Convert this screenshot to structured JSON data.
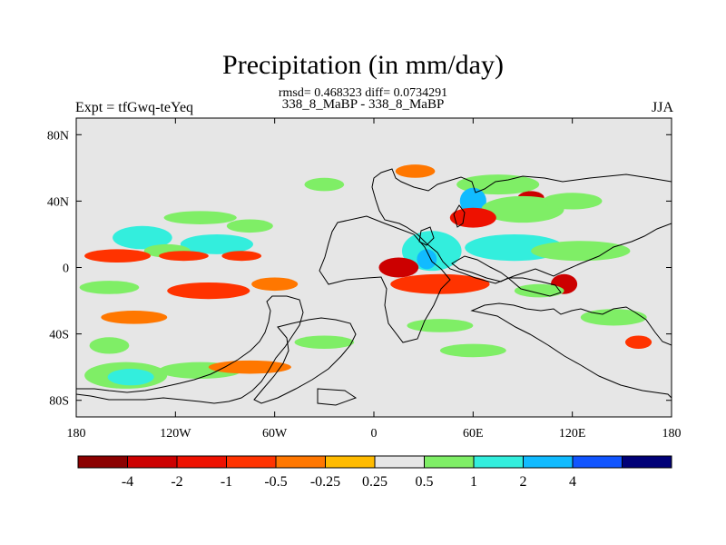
{
  "map": {
    "title": "Precipitation (in mm/day)",
    "stats": "rmsd= 0.468323 diff= 0.0734291",
    "subtitle": "338_8_MaBP - 338_8_MaBP",
    "experiment": "Expt = tfGwq-teYeq",
    "season": "JJA",
    "projection": "cylindrical equidistant",
    "lon_range": [
      -180,
      180
    ],
    "lat_range": [
      -90,
      90
    ],
    "lat_ticks": [
      {
        "value": 80,
        "label": "80N"
      },
      {
        "value": 40,
        "label": "40N"
      },
      {
        "value": 0,
        "label": "0"
      },
      {
        "value": -40,
        "label": "40S"
      },
      {
        "value": -80,
        "label": "80S"
      }
    ],
    "lon_ticks": [
      {
        "value": -180,
        "label": "180"
      },
      {
        "value": -120,
        "label": "120W"
      },
      {
        "value": -60,
        "label": "60W"
      },
      {
        "value": 0,
        "label": "0"
      },
      {
        "value": 60,
        "label": "60E"
      },
      {
        "value": 120,
        "label": "120E"
      },
      {
        "value": 180,
        "label": "180"
      }
    ]
  },
  "colorbar": {
    "colors": [
      "#8b0000",
      "#cc0000",
      "#ee1100",
      "#ff3300",
      "#ff7700",
      "#ffbb00",
      "#e6e6e6",
      "#7fee66",
      "#33eedd",
      "#11bbff",
      "#1155ff",
      "#000077"
    ],
    "labels": [
      "-4",
      "-2",
      "-1",
      "-0.5",
      "-0.25",
      "0.25",
      "0.5",
      "1",
      "2",
      "4"
    ]
  },
  "chart_data": {
    "type": "heatmap",
    "title": "Precipitation (in mm/day)",
    "units": "mm/day",
    "levels": [
      -4,
      -2,
      -1,
      -0.5,
      -0.25,
      0.25,
      0.5,
      1,
      2,
      4
    ],
    "features": [
      {
        "lon": -105,
        "lat": 30,
        "rlon": 22,
        "rlat": 4,
        "value": 0.7
      },
      {
        "lon": -140,
        "lat": 18,
        "rlon": 18,
        "rlat": 7,
        "value": 1.5
      },
      {
        "lon": -95,
        "lat": 14,
        "rlon": 22,
        "rlat": 6,
        "value": 1.5
      },
      {
        "lon": -125,
        "lat": 10,
        "rlon": 14,
        "rlat": 4,
        "value": 0.7
      },
      {
        "lon": -75,
        "lat": 25,
        "rlon": 14,
        "rlat": 4,
        "value": 0.7
      },
      {
        "lon": -155,
        "lat": 7,
        "rlon": 20,
        "rlat": 4,
        "value": -0.6
      },
      {
        "lon": -115,
        "lat": 7,
        "rlon": 15,
        "rlat": 3,
        "value": -0.6
      },
      {
        "lon": -80,
        "lat": 7,
        "rlon": 12,
        "rlat": 3,
        "value": -0.6
      },
      {
        "lon": -160,
        "lat": -12,
        "rlon": 18,
        "rlat": 4,
        "value": 0.7
      },
      {
        "lon": -100,
        "lat": -14,
        "rlon": 25,
        "rlat": 5,
        "value": -0.6
      },
      {
        "lon": -60,
        "lat": -10,
        "rlon": 14,
        "rlat": 4,
        "value": -0.4
      },
      {
        "lon": -145,
        "lat": -30,
        "rlon": 20,
        "rlat": 4,
        "value": -0.4
      },
      {
        "lon": -160,
        "lat": -47,
        "rlon": 12,
        "rlat": 5,
        "value": 0.7
      },
      {
        "lon": -150,
        "lat": -65,
        "rlon": 25,
        "rlat": 8,
        "value": 0.7
      },
      {
        "lon": -147,
        "lat": -66,
        "rlon": 14,
        "rlat": 5,
        "value": 1.5
      },
      {
        "lon": -105,
        "lat": -62,
        "rlon": 25,
        "rlat": 5,
        "value": 0.7
      },
      {
        "lon": -75,
        "lat": -60,
        "rlon": 25,
        "rlat": 4,
        "value": -0.4
      },
      {
        "lon": -30,
        "lat": -45,
        "rlon": 18,
        "rlat": 4,
        "value": 0.7
      },
      {
        "lon": -30,
        "lat": 50,
        "rlon": 12,
        "rlat": 4,
        "value": 0.7
      },
      {
        "lon": 25,
        "lat": 58,
        "rlon": 12,
        "rlat": 4,
        "value": -0.4
      },
      {
        "lon": 75,
        "lat": 50,
        "rlon": 25,
        "rlat": 6,
        "value": 0.7
      },
      {
        "lon": 60,
        "lat": 40,
        "rlon": 8,
        "rlat": 8,
        "value": 2.5
      },
      {
        "lon": 95,
        "lat": 42,
        "rlon": 8,
        "rlat": 4,
        "value": -2.5
      },
      {
        "lon": 90,
        "lat": 35,
        "rlon": 25,
        "rlat": 8,
        "value": 0.7
      },
      {
        "lon": 120,
        "lat": 40,
        "rlon": 18,
        "rlat": 5,
        "value": 0.7
      },
      {
        "lon": 85,
        "lat": 12,
        "rlon": 30,
        "rlat": 8,
        "value": 1.5
      },
      {
        "lon": 125,
        "lat": 10,
        "rlon": 30,
        "rlat": 6,
        "value": 0.7
      },
      {
        "lon": 35,
        "lat": 10,
        "rlon": 18,
        "rlat": 12,
        "value": 1.5
      },
      {
        "lon": 32,
        "lat": 5,
        "rlon": 6,
        "rlat": 6,
        "value": 2.5
      },
      {
        "lon": 15,
        "lat": 0,
        "rlon": 12,
        "rlat": 6,
        "value": -2.5
      },
      {
        "lon": 60,
        "lat": 30,
        "rlon": 14,
        "rlat": 6,
        "value": -1.5
      },
      {
        "lon": 40,
        "lat": -10,
        "rlon": 30,
        "rlat": 6,
        "value": -0.6
      },
      {
        "lon": 115,
        "lat": -10,
        "rlon": 8,
        "rlat": 6,
        "value": -2.5
      },
      {
        "lon": 100,
        "lat": -14,
        "rlon": 15,
        "rlat": 4,
        "value": 0.7
      },
      {
        "lon": 145,
        "lat": -30,
        "rlon": 20,
        "rlat": 5,
        "value": 0.7
      },
      {
        "lon": 160,
        "lat": -45,
        "rlon": 8,
        "rlat": 4,
        "value": -0.6
      },
      {
        "lon": 40,
        "lat": -35,
        "rlon": 20,
        "rlat": 4,
        "value": 0.7
      },
      {
        "lon": 60,
        "lat": -50,
        "rlon": 20,
        "rlat": 4,
        "value": 0.7
      }
    ]
  }
}
